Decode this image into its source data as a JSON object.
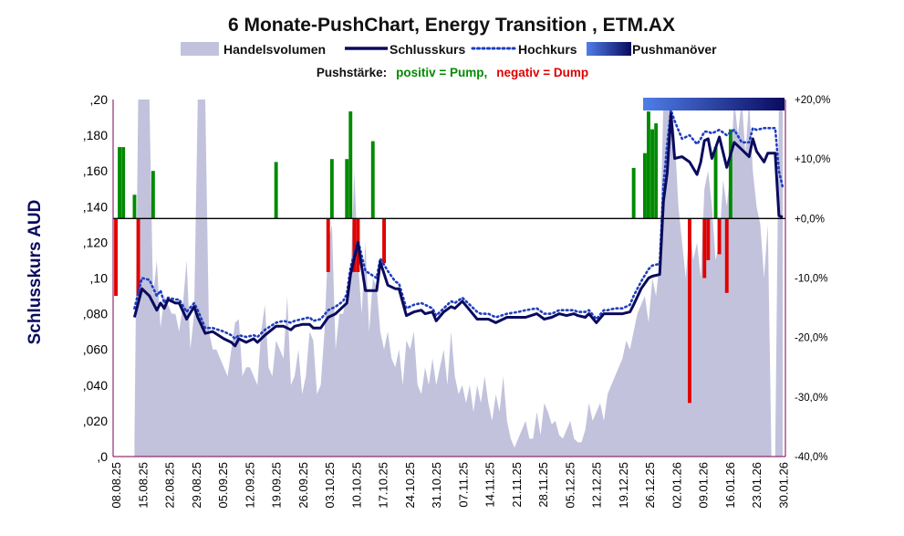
{
  "chart_data": {
    "type": "line",
    "title": "6 Monate-PushChart, Energy Transition , ETM.AX",
    "subtitle": {
      "label": "Pushstärke:",
      "positive": "positiv = Pump,",
      "negative": "negativ = Dump"
    },
    "legend": [
      {
        "name": "Handelsvolumen",
        "kind": "area",
        "color": "#c2c2dd"
      },
      {
        "name": "Schlusskurs",
        "kind": "line",
        "color": "#0a0a5e"
      },
      {
        "name": "Hochkurs",
        "kind": "dotted",
        "color": "#1f3fbf"
      },
      {
        "name": "Pushmanöver",
        "kind": "gradient",
        "color_from": "#4f7ee8",
        "color_to": "#0a0a5e"
      }
    ],
    "legend_position": "top",
    "ylabel": "Schlusskurs AUD",
    "ylim": [
      0,
      0.2
    ],
    "y_ticks": [
      ",0",
      ",020",
      ",040",
      ",060",
      ",080",
      ",10",
      ",120",
      ",140",
      ",160",
      ",180",
      ",20"
    ],
    "y2lim": [
      -40,
      20
    ],
    "y2_ticks": [
      "-40,0%",
      "-30,0%",
      "-20,0%",
      "-10,0%",
      "+0,0%",
      "+10,0%",
      "+20,0%"
    ],
    "y2_zero": 0,
    "x_count": 126,
    "x_tick_labels": [
      "08.08.25",
      "15.08.25",
      "22.08.25",
      "29.08.25",
      "05.09.25",
      "12.09.25",
      "19.09.25",
      "26.09.25",
      "03.10.25",
      "10.10.25",
      "17.10.25",
      "24.10.25",
      "31.10.25",
      "07.11.25",
      "14.11.25",
      "21.11.25",
      "28.11.25",
      "05.12.25",
      "12.12.25",
      "19.12.25",
      "26.12.25",
      "02.01.26",
      "09.01.26",
      "16.01.26",
      "23.01.26",
      "30.01.26"
    ],
    "grid": false,
    "close": [
      [
        5,
        0.078
      ],
      [
        7,
        0.094
      ],
      [
        9,
        0.09
      ],
      [
        11,
        0.082
      ],
      [
        12,
        0.086
      ],
      [
        13,
        0.083
      ],
      [
        14,
        0.088
      ],
      [
        16,
        0.086
      ],
      [
        17,
        0.086
      ],
      [
        19,
        0.077
      ],
      [
        21,
        0.084
      ],
      [
        22,
        0.078
      ],
      [
        24,
        0.069
      ],
      [
        26,
        0.07
      ],
      [
        29,
        0.066
      ],
      [
        31,
        0.064
      ],
      [
        32,
        0.062
      ],
      [
        33,
        0.066
      ],
      [
        35,
        0.064
      ],
      [
        37,
        0.066
      ],
      [
        38,
        0.064
      ],
      [
        40,
        0.068
      ],
      [
        43,
        0.073
      ],
      [
        45,
        0.073
      ],
      [
        47,
        0.071
      ],
      [
        48,
        0.073
      ],
      [
        50,
        0.074
      ],
      [
        52,
        0.074
      ],
      [
        53,
        0.072
      ],
      [
        55,
        0.072
      ],
      [
        57,
        0.078
      ],
      [
        59,
        0.08
      ],
      [
        61,
        0.084
      ],
      [
        62,
        0.086
      ],
      [
        63,
        0.102
      ],
      [
        65,
        0.12
      ],
      [
        67,
        0.093
      ],
      [
        70,
        0.093
      ],
      [
        71,
        0.109
      ],
      [
        73,
        0.096
      ],
      [
        75,
        0.094
      ],
      [
        76,
        0.094
      ],
      [
        78,
        0.079
      ],
      [
        80,
        0.081
      ],
      [
        82,
        0.082
      ],
      [
        83,
        0.08
      ],
      [
        85,
        0.081
      ],
      [
        86,
        0.076
      ],
      [
        88,
        0.081
      ],
      [
        90,
        0.084
      ],
      [
        91,
        0.083
      ],
      [
        93,
        0.087
      ],
      [
        95,
        0.082
      ],
      [
        97,
        0.077
      ],
      [
        98,
        0.077
      ],
      [
        100,
        0.077
      ],
      [
        102,
        0.075
      ],
      [
        105,
        0.078
      ],
      [
        108,
        0.078
      ],
      [
        110,
        0.078
      ],
      [
        113,
        0.08
      ],
      [
        115,
        0.077
      ],
      [
        117,
        0.078
      ],
      [
        119,
        0.08
      ],
      [
        121,
        0.079
      ],
      [
        123,
        0.08
      ],
      [
        124,
        0.079
      ],
      [
        126,
        0.078
      ],
      [
        127,
        0.08
      ],
      [
        129,
        0.075
      ],
      [
        131,
        0.08
      ],
      [
        132,
        0.08
      ],
      [
        134,
        0.08
      ],
      [
        136,
        0.08
      ],
      [
        138,
        0.081
      ],
      [
        139,
        0.085
      ],
      [
        141,
        0.094
      ],
      [
        143,
        0.1
      ],
      [
        144,
        0.101
      ],
      [
        146,
        0.102
      ],
      [
        147,
        0.143
      ],
      [
        148,
        0.159
      ],
      [
        149,
        0.192
      ],
      [
        150,
        0.167
      ],
      [
        152,
        0.168
      ],
      [
        154,
        0.165
      ],
      [
        156,
        0.158
      ],
      [
        157,
        0.165
      ],
      [
        158,
        0.177
      ],
      [
        159,
        0.178
      ],
      [
        160,
        0.167
      ],
      [
        162,
        0.179
      ],
      [
        164,
        0.162
      ],
      [
        166,
        0.176
      ],
      [
        168,
        0.172
      ],
      [
        170,
        0.168
      ],
      [
        171,
        0.178
      ],
      [
        172,
        0.171
      ],
      [
        174,
        0.165
      ],
      [
        175,
        0.17
      ],
      [
        177,
        0.17
      ],
      [
        178,
        0.135
      ],
      [
        179,
        0.134
      ]
    ],
    "high": [
      [
        5,
        0.083
      ],
      [
        7,
        0.1
      ],
      [
        9,
        0.099
      ],
      [
        11,
        0.09
      ],
      [
        12,
        0.093
      ],
      [
        13,
        0.086
      ],
      [
        14,
        0.089
      ],
      [
        16,
        0.088
      ],
      [
        17,
        0.088
      ],
      [
        19,
        0.081
      ],
      [
        21,
        0.086
      ],
      [
        22,
        0.082
      ],
      [
        24,
        0.072
      ],
      [
        26,
        0.072
      ],
      [
        29,
        0.07
      ],
      [
        31,
        0.068
      ],
      [
        32,
        0.066
      ],
      [
        33,
        0.068
      ],
      [
        35,
        0.067
      ],
      [
        37,
        0.068
      ],
      [
        38,
        0.067
      ],
      [
        40,
        0.071
      ],
      [
        43,
        0.075
      ],
      [
        45,
        0.076
      ],
      [
        47,
        0.075
      ],
      [
        48,
        0.076
      ],
      [
        50,
        0.077
      ],
      [
        52,
        0.078
      ],
      [
        53,
        0.076
      ],
      [
        55,
        0.077
      ],
      [
        57,
        0.082
      ],
      [
        59,
        0.084
      ],
      [
        61,
        0.087
      ],
      [
        62,
        0.091
      ],
      [
        63,
        0.106
      ],
      [
        65,
        0.121
      ],
      [
        67,
        0.104
      ],
      [
        70,
        0.1
      ],
      [
        71,
        0.111
      ],
      [
        73,
        0.104
      ],
      [
        75,
        0.098
      ],
      [
        76,
        0.097
      ],
      [
        78,
        0.083
      ],
      [
        80,
        0.085
      ],
      [
        82,
        0.086
      ],
      [
        83,
        0.085
      ],
      [
        85,
        0.083
      ],
      [
        86,
        0.079
      ],
      [
        88,
        0.083
      ],
      [
        90,
        0.087
      ],
      [
        91,
        0.086
      ],
      [
        93,
        0.089
      ],
      [
        95,
        0.085
      ],
      [
        97,
        0.081
      ],
      [
        98,
        0.08
      ],
      [
        100,
        0.08
      ],
      [
        102,
        0.078
      ],
      [
        105,
        0.08
      ],
      [
        108,
        0.081
      ],
      [
        110,
        0.082
      ],
      [
        113,
        0.083
      ],
      [
        115,
        0.08
      ],
      [
        117,
        0.08
      ],
      [
        119,
        0.082
      ],
      [
        121,
        0.082
      ],
      [
        123,
        0.082
      ],
      [
        124,
        0.081
      ],
      [
        126,
        0.081
      ],
      [
        127,
        0.082
      ],
      [
        129,
        0.077
      ],
      [
        131,
        0.082
      ],
      [
        132,
        0.082
      ],
      [
        134,
        0.083
      ],
      [
        136,
        0.083
      ],
      [
        138,
        0.085
      ],
      [
        139,
        0.09
      ],
      [
        141,
        0.098
      ],
      [
        143,
        0.105
      ],
      [
        144,
        0.107
      ],
      [
        146,
        0.108
      ],
      [
        147,
        0.152
      ],
      [
        148,
        0.175
      ],
      [
        149,
        0.194
      ],
      [
        150,
        0.188
      ],
      [
        152,
        0.178
      ],
      [
        154,
        0.18
      ],
      [
        156,
        0.175
      ],
      [
        157,
        0.178
      ],
      [
        158,
        0.182
      ],
      [
        159,
        0.182
      ],
      [
        160,
        0.181
      ],
      [
        162,
        0.183
      ],
      [
        164,
        0.18
      ],
      [
        166,
        0.183
      ],
      [
        168,
        0.176
      ],
      [
        170,
        0.176
      ],
      [
        171,
        0.184
      ],
      [
        172,
        0.183
      ],
      [
        174,
        0.184
      ],
      [
        175,
        0.184
      ],
      [
        177,
        0.184
      ],
      [
        178,
        0.16
      ],
      [
        179,
        0.151
      ]
    ],
    "volume": [
      [
        5,
        0.01
      ],
      [
        6,
        0.2
      ],
      [
        9,
        0.2
      ],
      [
        10,
        0.09
      ],
      [
        11,
        0.11
      ],
      [
        12,
        0.072
      ],
      [
        13,
        0.09
      ],
      [
        15,
        0.08
      ],
      [
        16,
        0.08
      ],
      [
        17,
        0.07
      ],
      [
        18,
        0.085
      ],
      [
        19,
        0.11
      ],
      [
        20,
        0.06
      ],
      [
        21,
        0.08
      ],
      [
        22,
        0.2
      ],
      [
        24,
        0.2
      ],
      [
        25,
        0.07
      ],
      [
        26,
        0.06
      ],
      [
        27,
        0.06
      ],
      [
        28,
        0.055
      ],
      [
        29,
        0.05
      ],
      [
        30,
        0.045
      ],
      [
        31,
        0.06
      ],
      [
        32,
        0.075
      ],
      [
        33,
        0.077
      ],
      [
        34,
        0.045
      ],
      [
        35,
        0.05
      ],
      [
        36,
        0.05
      ],
      [
        37,
        0.045
      ],
      [
        38,
        0.04
      ],
      [
        39,
        0.07
      ],
      [
        40,
        0.085
      ],
      [
        41,
        0.05
      ],
      [
        42,
        0.045
      ],
      [
        43,
        0.065
      ],
      [
        44,
        0.06
      ],
      [
        45,
        0.055
      ],
      [
        46,
        0.09
      ],
      [
        47,
        0.04
      ],
      [
        48,
        0.045
      ],
      [
        49,
        0.06
      ],
      [
        50,
        0.035
      ],
      [
        51,
        0.045
      ],
      [
        52,
        0.07
      ],
      [
        53,
        0.065
      ],
      [
        54,
        0.035
      ],
      [
        55,
        0.04
      ],
      [
        56,
        0.07
      ],
      [
        57,
        0.12
      ],
      [
        58,
        0.13
      ],
      [
        59,
        0.06
      ],
      [
        60,
        0.08
      ],
      [
        61,
        0.08
      ],
      [
        62,
        0.09
      ],
      [
        63,
        0.1
      ],
      [
        64,
        0.16
      ],
      [
        65,
        0.11
      ],
      [
        66,
        0.08
      ],
      [
        67,
        0.12
      ],
      [
        68,
        0.07
      ],
      [
        69,
        0.1
      ],
      [
        70,
        0.095
      ],
      [
        71,
        0.07
      ],
      [
        72,
        0.06
      ],
      [
        73,
        0.07
      ],
      [
        74,
        0.055
      ],
      [
        75,
        0.05
      ],
      [
        76,
        0.06
      ],
      [
        77,
        0.04
      ],
      [
        78,
        0.065
      ],
      [
        79,
        0.06
      ],
      [
        80,
        0.07
      ],
      [
        81,
        0.04
      ],
      [
        82,
        0.035
      ],
      [
        83,
        0.05
      ],
      [
        84,
        0.04
      ],
      [
        85,
        0.055
      ],
      [
        86,
        0.04
      ],
      [
        87,
        0.05
      ],
      [
        88,
        0.06
      ],
      [
        89,
        0.04
      ],
      [
        90,
        0.07
      ],
      [
        91,
        0.045
      ],
      [
        92,
        0.035
      ],
      [
        93,
        0.04
      ],
      [
        94,
        0.03
      ],
      [
        95,
        0.04
      ],
      [
        96,
        0.025
      ],
      [
        97,
        0.04
      ],
      [
        98,
        0.03
      ],
      [
        99,
        0.045
      ],
      [
        100,
        0.03
      ],
      [
        101,
        0.02
      ],
      [
        102,
        0.035
      ],
      [
        103,
        0.025
      ],
      [
        104,
        0.045
      ],
      [
        105,
        0.02
      ],
      [
        106,
        0.01
      ],
      [
        107,
        0.005
      ],
      [
        108,
        0.01
      ],
      [
        109,
        0.015
      ],
      [
        110,
        0.02
      ],
      [
        111,
        0.01
      ],
      [
        112,
        0.01
      ],
      [
        113,
        0.025
      ],
      [
        114,
        0.012
      ],
      [
        115,
        0.03
      ],
      [
        116,
        0.025
      ],
      [
        117,
        0.018
      ],
      [
        118,
        0.02
      ],
      [
        119,
        0.012
      ],
      [
        120,
        0.01
      ],
      [
        121,
        0.015
      ],
      [
        122,
        0.02
      ],
      [
        123,
        0.01
      ],
      [
        124,
        0.008
      ],
      [
        125,
        0.008
      ],
      [
        126,
        0.015
      ],
      [
        127,
        0.03
      ],
      [
        128,
        0.02
      ],
      [
        129,
        0.025
      ],
      [
        130,
        0.03
      ],
      [
        131,
        0.02
      ],
      [
        132,
        0.035
      ],
      [
        133,
        0.04
      ],
      [
        134,
        0.045
      ],
      [
        135,
        0.05
      ],
      [
        136,
        0.055
      ],
      [
        137,
        0.065
      ],
      [
        138,
        0.06
      ],
      [
        139,
        0.07
      ],
      [
        140,
        0.08
      ],
      [
        141,
        0.085
      ],
      [
        142,
        0.09
      ],
      [
        143,
        0.075
      ],
      [
        144,
        0.1
      ],
      [
        145,
        0.09
      ],
      [
        146,
        0.11
      ],
      [
        147,
        0.2
      ],
      [
        148,
        0.2
      ],
      [
        149,
        0.2
      ],
      [
        150,
        0.18
      ],
      [
        151,
        0.14
      ],
      [
        152,
        0.12
      ],
      [
        153,
        0.1
      ],
      [
        154,
        0.13
      ],
      [
        155,
        0.11
      ],
      [
        156,
        0.12
      ],
      [
        157,
        0.1
      ],
      [
        158,
        0.15
      ],
      [
        159,
        0.16
      ],
      [
        160,
        0.14
      ],
      [
        161,
        0.11
      ],
      [
        162,
        0.12
      ],
      [
        163,
        0.155
      ],
      [
        164,
        0.14
      ],
      [
        165,
        0.16
      ],
      [
        166,
        0.2
      ],
      [
        167,
        0.18
      ],
      [
        168,
        0.2
      ],
      [
        169,
        0.17
      ],
      [
        170,
        0.2
      ],
      [
        171,
        0.16
      ],
      [
        172,
        0.14
      ],
      [
        173,
        0.13
      ],
      [
        174,
        0.1
      ],
      [
        175,
        0.13
      ],
      [
        176,
        0.0
      ],
      [
        177,
        0.0
      ],
      [
        178,
        0.2
      ],
      [
        179,
        0.2
      ]
    ],
    "push": [
      [
        0,
        -13
      ],
      [
        1,
        12
      ],
      [
        2,
        12
      ],
      [
        5,
        4
      ],
      [
        6,
        -13
      ],
      [
        10,
        8
      ],
      [
        43,
        9.5
      ],
      [
        57,
        -9
      ],
      [
        58,
        10
      ],
      [
        62,
        10
      ],
      [
        63,
        18
      ],
      [
        64,
        -9
      ],
      [
        65,
        -9
      ],
      [
        69,
        13
      ],
      [
        72,
        -7.5
      ],
      [
        139,
        8.5
      ],
      [
        142,
        11
      ],
      [
        143,
        18
      ],
      [
        144,
        15
      ],
      [
        145,
        16
      ],
      [
        154,
        -31
      ],
      [
        158,
        -10
      ],
      [
        159,
        -7
      ],
      [
        161,
        12
      ],
      [
        162,
        -6
      ],
      [
        164,
        -12.5
      ],
      [
        165,
        15
      ]
    ],
    "push_colors": {
      "positive": "#008a00",
      "negative": "#e00000"
    },
    "push_marker": {
      "from": 142,
      "to": 179,
      "value": 20
    }
  }
}
